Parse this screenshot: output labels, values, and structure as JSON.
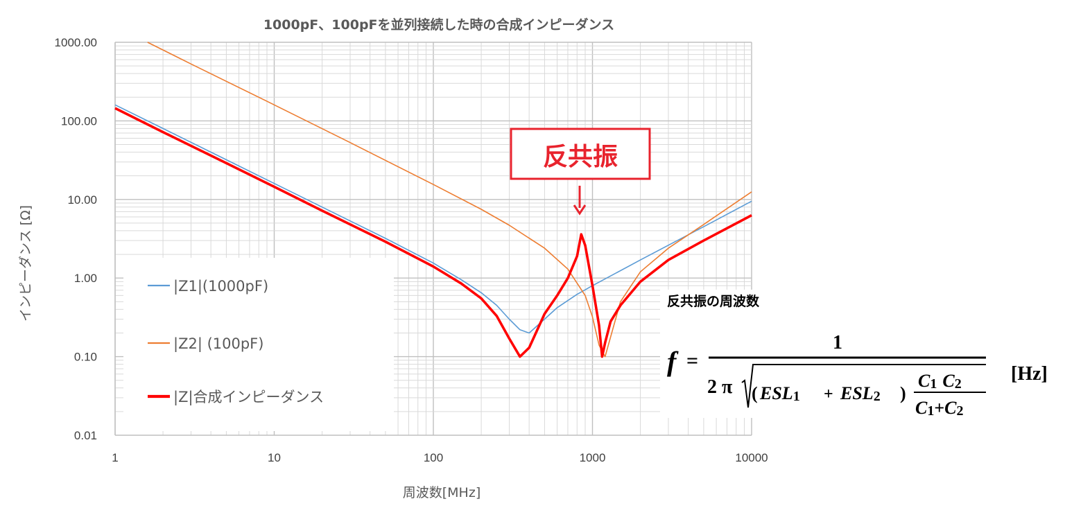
{
  "chart_data": {
    "type": "line",
    "title": "1000pF、100pFを並列接続した時の合成インピーダンス",
    "xlabel": "周波数[MHz]",
    "ylabel": "インピーダンス [Ω]",
    "xscale": "log",
    "yscale": "log",
    "xlim": [
      1,
      10000
    ],
    "ylim": [
      0.01,
      1000
    ],
    "x_ticks": [
      "1",
      "10",
      "100",
      "1000",
      "10000"
    ],
    "y_ticks": [
      "0.01",
      "0.10",
      "1.00",
      "10.00",
      "100.00",
      "1000.00"
    ],
    "grid": true,
    "legend_position": "bottom-left",
    "series": [
      {
        "name": "|Z1|(1000pF)",
        "color": "#5b9bd5",
        "x": [
          1,
          2,
          5,
          10,
          20,
          50,
          100,
          150,
          200,
          250,
          300,
          350,
          400,
          500,
          600,
          800,
          1000,
          2000,
          5000,
          10000
        ],
        "y": [
          160,
          80,
          32,
          16,
          8,
          3.2,
          1.55,
          0.95,
          0.65,
          0.45,
          0.3,
          0.22,
          0.2,
          0.3,
          0.42,
          0.62,
          0.8,
          1.7,
          4.5,
          9.5
        ]
      },
      {
        "name": "|Z2| (100pF)",
        "color": "#ed7d31",
        "x": [
          1.6,
          3,
          10,
          30,
          100,
          200,
          300,
          500,
          700,
          900,
          1000,
          1100,
          1200,
          1500,
          2000,
          3000,
          5000,
          10000
        ],
        "y": [
          1000,
          530,
          160,
          53,
          15.5,
          7.5,
          4.7,
          2.4,
          1.3,
          0.6,
          0.32,
          0.14,
          0.1,
          0.5,
          1.2,
          2.4,
          4.8,
          12.5
        ]
      },
      {
        "name": "|Z|合成インピーダンス",
        "color": "#ff0000",
        "x": [
          1,
          2,
          5,
          10,
          20,
          50,
          100,
          150,
          200,
          250,
          300,
          350,
          400,
          500,
          600,
          700,
          800,
          850,
          900,
          1000,
          1100,
          1150,
          1200,
          1300,
          1500,
          2000,
          3000,
          5000,
          10000
        ],
        "y": [
          145,
          72,
          29,
          14.5,
          7.2,
          2.9,
          1.4,
          0.85,
          0.55,
          0.33,
          0.17,
          0.1,
          0.13,
          0.35,
          0.6,
          1.0,
          1.9,
          3.6,
          2.6,
          0.8,
          0.25,
          0.1,
          0.15,
          0.28,
          0.45,
          0.9,
          1.7,
          3.0,
          6.3
        ]
      }
    ],
    "annotations": [
      {
        "text": "反共振",
        "color": "#e8232d"
      }
    ]
  },
  "formula": {
    "heading": "反共振の周波数",
    "f": "f",
    "equals": "=",
    "numerator": "1",
    "two_pi": "2 π",
    "lparen": "(",
    "esl1": "ESL",
    "sub1": "1",
    "plus1": "+",
    "esl2": "ESL",
    "sub2": "2",
    "rparen": ")",
    "c1": "C",
    "c1sub": "1",
    "c2": "C",
    "c2sub": "2",
    "c1b": "C",
    "c1bsub": "1",
    "plus2": "+",
    "c2b": "C",
    "c2bsub": "2",
    "unit": "[Hz]"
  }
}
